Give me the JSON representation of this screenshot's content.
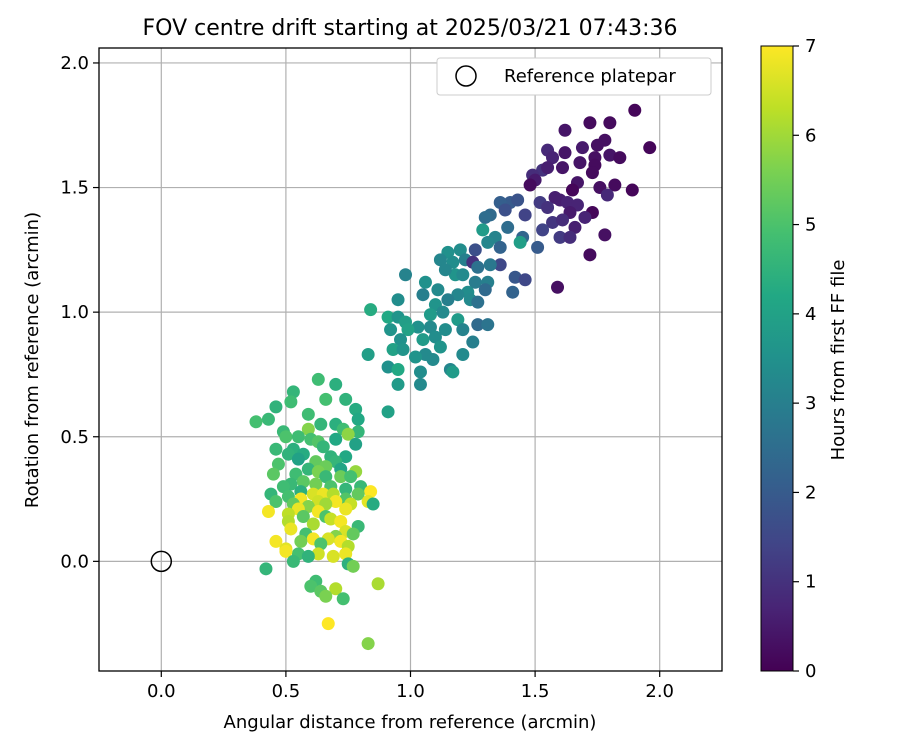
{
  "chart_data": {
    "type": "scatter",
    "title": "FOV centre drift starting at 2025/03/21 07:43:36",
    "xlabel": "Angular distance from reference (arcmin)",
    "ylabel": "Rotation from reference (arcmin)",
    "xlim": [
      -0.25,
      2.25
    ],
    "ylim": [
      -0.44,
      2.06
    ],
    "xticks": [
      0.0,
      0.5,
      1.0,
      1.5,
      2.0
    ],
    "xtick_labels": [
      "0.0",
      "0.5",
      "1.0",
      "1.5",
      "2.0"
    ],
    "yticks": [
      0.0,
      0.5,
      1.0,
      1.5,
      2.0
    ],
    "ytick_labels": [
      "0.0",
      "0.5",
      "1.0",
      "1.5",
      "2.0"
    ],
    "grid": true,
    "legend": {
      "position": "top-right",
      "entries": [
        "Reference platepar"
      ]
    },
    "reference_point": {
      "x": 0.0,
      "y": 0.0,
      "marker": "open-circle"
    },
    "colorbar": {
      "label": "Hours from first FF file",
      "range": [
        0,
        7
      ],
      "ticks": [
        0,
        1,
        2,
        3,
        4,
        5,
        6,
        7
      ],
      "colormap": "viridis"
    },
    "points": [
      {
        "x": 1.9,
        "y": 1.81,
        "c": 0.1
      },
      {
        "x": 1.72,
        "y": 1.76,
        "c": 0.2
      },
      {
        "x": 1.8,
        "y": 1.76,
        "c": 0.2
      },
      {
        "x": 1.62,
        "y": 1.73,
        "c": 0.4
      },
      {
        "x": 1.78,
        "y": 1.69,
        "c": 0.3
      },
      {
        "x": 1.75,
        "y": 1.67,
        "c": 0.3
      },
      {
        "x": 1.69,
        "y": 1.66,
        "c": 0.5
      },
      {
        "x": 1.96,
        "y": 1.66,
        "c": 0.1
      },
      {
        "x": 1.55,
        "y": 1.65,
        "c": 0.8
      },
      {
        "x": 1.62,
        "y": 1.64,
        "c": 0.4
      },
      {
        "x": 1.57,
        "y": 1.62,
        "c": 0.7
      },
      {
        "x": 1.74,
        "y": 1.62,
        "c": 0.3
      },
      {
        "x": 1.8,
        "y": 1.63,
        "c": 0.4
      },
      {
        "x": 1.84,
        "y": 1.62,
        "c": 0.2
      },
      {
        "x": 1.68,
        "y": 1.6,
        "c": 0.4
      },
      {
        "x": 1.74,
        "y": 1.59,
        "c": 0.2
      },
      {
        "x": 1.53,
        "y": 1.57,
        "c": 1.0
      },
      {
        "x": 1.55,
        "y": 1.58,
        "c": 0.6
      },
      {
        "x": 1.61,
        "y": 1.58,
        "c": 0.4
      },
      {
        "x": 1.49,
        "y": 1.55,
        "c": 0.9
      },
      {
        "x": 1.73,
        "y": 1.56,
        "c": 0.2
      },
      {
        "x": 1.5,
        "y": 1.53,
        "c": 0.5
      },
      {
        "x": 1.48,
        "y": 1.51,
        "c": 0.2
      },
      {
        "x": 1.67,
        "y": 1.52,
        "c": 0.4
      },
      {
        "x": 1.82,
        "y": 1.51,
        "c": 0.2
      },
      {
        "x": 1.76,
        "y": 1.5,
        "c": 0.3
      },
      {
        "x": 1.89,
        "y": 1.49,
        "c": 0.1
      },
      {
        "x": 1.65,
        "y": 1.49,
        "c": 0.1
      },
      {
        "x": 1.79,
        "y": 1.47,
        "c": 0.8
      },
      {
        "x": 1.58,
        "y": 1.46,
        "c": 0.6
      },
      {
        "x": 1.6,
        "y": 1.45,
        "c": 0.6
      },
      {
        "x": 1.63,
        "y": 1.44,
        "c": 0.7
      },
      {
        "x": 1.4,
        "y": 1.44,
        "c": 2.0
      },
      {
        "x": 1.36,
        "y": 1.44,
        "c": 2.1
      },
      {
        "x": 1.43,
        "y": 1.45,
        "c": 1.8
      },
      {
        "x": 1.52,
        "y": 1.44,
        "c": 1.2
      },
      {
        "x": 1.67,
        "y": 1.43,
        "c": 0.7
      },
      {
        "x": 1.55,
        "y": 1.42,
        "c": 1.0
      },
      {
        "x": 1.64,
        "y": 1.4,
        "c": 0.5
      },
      {
        "x": 1.73,
        "y": 1.4,
        "c": 0.1
      },
      {
        "x": 1.38,
        "y": 1.41,
        "c": 1.7
      },
      {
        "x": 1.32,
        "y": 1.39,
        "c": 2.4
      },
      {
        "x": 1.3,
        "y": 1.38,
        "c": 2.5
      },
      {
        "x": 1.46,
        "y": 1.39,
        "c": 1.4
      },
      {
        "x": 1.57,
        "y": 1.36,
        "c": 1.1
      },
      {
        "x": 1.61,
        "y": 1.37,
        "c": 0.9
      },
      {
        "x": 1.7,
        "y": 1.38,
        "c": 0.7
      },
      {
        "x": 1.39,
        "y": 1.34,
        "c": 2.5
      },
      {
        "x": 1.29,
        "y": 1.33,
        "c": 3.8
      },
      {
        "x": 1.53,
        "y": 1.33,
        "c": 1.4
      },
      {
        "x": 1.66,
        "y": 1.34,
        "c": 0.6
      },
      {
        "x": 1.45,
        "y": 1.3,
        "c": 2.3
      },
      {
        "x": 1.6,
        "y": 1.3,
        "c": 1.2
      },
      {
        "x": 1.64,
        "y": 1.3,
        "c": 0.9
      },
      {
        "x": 1.78,
        "y": 1.31,
        "c": 0.3
      },
      {
        "x": 1.34,
        "y": 1.3,
        "c": 3.1
      },
      {
        "x": 1.44,
        "y": 1.28,
        "c": 3.9
      },
      {
        "x": 1.31,
        "y": 1.28,
        "c": 3.2
      },
      {
        "x": 1.51,
        "y": 1.26,
        "c": 2.0
      },
      {
        "x": 1.26,
        "y": 1.25,
        "c": 1.7
      },
      {
        "x": 1.15,
        "y": 1.24,
        "c": 3.5
      },
      {
        "x": 1.2,
        "y": 1.25,
        "c": 3.4
      },
      {
        "x": 1.36,
        "y": 1.26,
        "c": 2.2
      },
      {
        "x": 1.72,
        "y": 1.23,
        "c": 0.2
      },
      {
        "x": 1.12,
        "y": 1.21,
        "c": 3.2
      },
      {
        "x": 1.17,
        "y": 1.2,
        "c": 3.4
      },
      {
        "x": 1.22,
        "y": 1.21,
        "c": 3.0
      },
      {
        "x": 1.25,
        "y": 1.2,
        "c": 1.0
      },
      {
        "x": 1.27,
        "y": 1.18,
        "c": 2.6
      },
      {
        "x": 1.36,
        "y": 1.19,
        "c": 1.5
      },
      {
        "x": 1.32,
        "y": 1.19,
        "c": 2.8
      },
      {
        "x": 0.98,
        "y": 1.15,
        "c": 3.1
      },
      {
        "x": 1.18,
        "y": 1.15,
        "c": 3.6
      },
      {
        "x": 1.14,
        "y": 1.17,
        "c": 3.2
      },
      {
        "x": 1.21,
        "y": 1.15,
        "c": 3.3
      },
      {
        "x": 1.42,
        "y": 1.14,
        "c": 1.9
      },
      {
        "x": 1.46,
        "y": 1.13,
        "c": 1.5
      },
      {
        "x": 1.06,
        "y": 1.12,
        "c": 3.5
      },
      {
        "x": 1.26,
        "y": 1.12,
        "c": 2.9
      },
      {
        "x": 1.31,
        "y": 1.12,
        "c": 3.0
      },
      {
        "x": 1.59,
        "y": 1.1,
        "c": 0.3
      },
      {
        "x": 1.11,
        "y": 1.09,
        "c": 3.3
      },
      {
        "x": 1.23,
        "y": 1.08,
        "c": 3.4
      },
      {
        "x": 1.3,
        "y": 1.09,
        "c": 2.4
      },
      {
        "x": 1.41,
        "y": 1.08,
        "c": 2.2
      },
      {
        "x": 1.05,
        "y": 1.07,
        "c": 3.0
      },
      {
        "x": 1.19,
        "y": 1.07,
        "c": 3.2
      },
      {
        "x": 0.95,
        "y": 1.05,
        "c": 3.4
      },
      {
        "x": 1.15,
        "y": 1.05,
        "c": 3.0
      },
      {
        "x": 1.24,
        "y": 1.05,
        "c": 3.3
      },
      {
        "x": 1.27,
        "y": 1.04,
        "c": 2.6
      },
      {
        "x": 1.1,
        "y": 1.03,
        "c": 3.6
      },
      {
        "x": 0.84,
        "y": 1.01,
        "c": 4.3
      },
      {
        "x": 0.91,
        "y": 0.98,
        "c": 4.2
      },
      {
        "x": 0.95,
        "y": 0.98,
        "c": 3.6
      },
      {
        "x": 1.08,
        "y": 0.99,
        "c": 3.8
      },
      {
        "x": 1.13,
        "y": 1.0,
        "c": 3.3
      },
      {
        "x": 1.19,
        "y": 0.97,
        "c": 3.8
      },
      {
        "x": 1.27,
        "y": 0.95,
        "c": 2.4
      },
      {
        "x": 1.31,
        "y": 0.95,
        "c": 2.7
      },
      {
        "x": 0.98,
        "y": 0.96,
        "c": 3.9
      },
      {
        "x": 1.03,
        "y": 0.94,
        "c": 3.5
      },
      {
        "x": 1.08,
        "y": 0.94,
        "c": 3.3
      },
      {
        "x": 1.21,
        "y": 0.93,
        "c": 3.1
      },
      {
        "x": 0.92,
        "y": 0.93,
        "c": 3.6
      },
      {
        "x": 0.99,
        "y": 0.93,
        "c": 4.0
      },
      {
        "x": 1.14,
        "y": 0.93,
        "c": 3.4
      },
      {
        "x": 1.1,
        "y": 0.9,
        "c": 3.4
      },
      {
        "x": 1.05,
        "y": 0.89,
        "c": 3.8
      },
      {
        "x": 0.96,
        "y": 0.89,
        "c": 3.5
      },
      {
        "x": 1.12,
        "y": 0.86,
        "c": 3.6
      },
      {
        "x": 1.25,
        "y": 0.88,
        "c": 3.0
      },
      {
        "x": 0.93,
        "y": 0.85,
        "c": 4.0
      },
      {
        "x": 0.97,
        "y": 0.85,
        "c": 3.6
      },
      {
        "x": 1.06,
        "y": 0.83,
        "c": 3.3
      },
      {
        "x": 0.83,
        "y": 0.83,
        "c": 3.9
      },
      {
        "x": 1.21,
        "y": 0.83,
        "c": 3.3
      },
      {
        "x": 1.02,
        "y": 0.82,
        "c": 3.6
      },
      {
        "x": 1.09,
        "y": 0.81,
        "c": 3.3
      },
      {
        "x": 0.91,
        "y": 0.78,
        "c": 3.5
      },
      {
        "x": 0.95,
        "y": 0.77,
        "c": 4.2
      },
      {
        "x": 1.04,
        "y": 0.76,
        "c": 3.4
      },
      {
        "x": 1.16,
        "y": 0.77,
        "c": 3.2
      },
      {
        "x": 1.17,
        "y": 0.76,
        "c": 3.8
      },
      {
        "x": 0.95,
        "y": 0.71,
        "c": 3.8
      },
      {
        "x": 1.04,
        "y": 0.71,
        "c": 3.3
      },
      {
        "x": 0.91,
        "y": 0.6,
        "c": 4.0
      },
      {
        "x": 0.63,
        "y": 0.73,
        "c": 4.8
      },
      {
        "x": 0.7,
        "y": 0.71,
        "c": 4.4
      },
      {
        "x": 0.53,
        "y": 0.68,
        "c": 4.6
      },
      {
        "x": 0.66,
        "y": 0.65,
        "c": 4.9
      },
      {
        "x": 0.74,
        "y": 0.65,
        "c": 4.5
      },
      {
        "x": 0.46,
        "y": 0.62,
        "c": 4.5
      },
      {
        "x": 0.52,
        "y": 0.64,
        "c": 4.8
      },
      {
        "x": 0.78,
        "y": 0.61,
        "c": 4.3
      },
      {
        "x": 0.59,
        "y": 0.59,
        "c": 4.8
      },
      {
        "x": 0.43,
        "y": 0.57,
        "c": 4.7
      },
      {
        "x": 0.38,
        "y": 0.56,
        "c": 4.9
      },
      {
        "x": 0.64,
        "y": 0.55,
        "c": 4.6
      },
      {
        "x": 0.7,
        "y": 0.55,
        "c": 4.4
      },
      {
        "x": 0.79,
        "y": 0.57,
        "c": 4.2
      },
      {
        "x": 0.73,
        "y": 0.53,
        "c": 4.8
      },
      {
        "x": 0.79,
        "y": 0.52,
        "c": 4.6
      },
      {
        "x": 0.59,
        "y": 0.53,
        "c": 5.7
      },
      {
        "x": 0.49,
        "y": 0.52,
        "c": 4.7
      },
      {
        "x": 0.75,
        "y": 0.51,
        "c": 5.8
      },
      {
        "x": 0.5,
        "y": 0.5,
        "c": 5.0
      },
      {
        "x": 0.55,
        "y": 0.5,
        "c": 4.8
      },
      {
        "x": 0.6,
        "y": 0.49,
        "c": 4.9
      },
      {
        "x": 0.63,
        "y": 0.48,
        "c": 5.1
      },
      {
        "x": 0.7,
        "y": 0.49,
        "c": 4.2
      },
      {
        "x": 0.78,
        "y": 0.47,
        "c": 4.0
      },
      {
        "x": 0.46,
        "y": 0.45,
        "c": 4.7
      },
      {
        "x": 0.53,
        "y": 0.45,
        "c": 4.4
      },
      {
        "x": 0.65,
        "y": 0.46,
        "c": 4.6
      },
      {
        "x": 0.51,
        "y": 0.43,
        "c": 4.5
      },
      {
        "x": 0.57,
        "y": 0.43,
        "c": 4.3
      },
      {
        "x": 0.68,
        "y": 0.42,
        "c": 4.5
      },
      {
        "x": 0.74,
        "y": 0.42,
        "c": 4.2
      },
      {
        "x": 0.55,
        "y": 0.41,
        "c": 4.0
      },
      {
        "x": 0.62,
        "y": 0.4,
        "c": 5.3
      },
      {
        "x": 0.7,
        "y": 0.4,
        "c": 4.6
      },
      {
        "x": 0.47,
        "y": 0.39,
        "c": 5.0
      },
      {
        "x": 0.66,
        "y": 0.38,
        "c": 5.4
      },
      {
        "x": 0.59,
        "y": 0.37,
        "c": 4.6
      },
      {
        "x": 0.72,
        "y": 0.37,
        "c": 4.1
      },
      {
        "x": 0.63,
        "y": 0.36,
        "c": 5.6
      },
      {
        "x": 0.78,
        "y": 0.36,
        "c": 5.9
      },
      {
        "x": 0.45,
        "y": 0.35,
        "c": 5.2
      },
      {
        "x": 0.54,
        "y": 0.35,
        "c": 4.8
      },
      {
        "x": 0.66,
        "y": 0.34,
        "c": 4.7
      },
      {
        "x": 0.72,
        "y": 0.34,
        "c": 5.4
      },
      {
        "x": 0.76,
        "y": 0.34,
        "c": 4.9
      },
      {
        "x": 0.57,
        "y": 0.32,
        "c": 5.2
      },
      {
        "x": 0.62,
        "y": 0.31,
        "c": 5.5
      },
      {
        "x": 0.52,
        "y": 0.31,
        "c": 4.7
      },
      {
        "x": 0.49,
        "y": 0.3,
        "c": 4.8
      },
      {
        "x": 0.8,
        "y": 0.3,
        "c": 4.7
      },
      {
        "x": 0.68,
        "y": 0.3,
        "c": 5.0
      },
      {
        "x": 0.74,
        "y": 0.29,
        "c": 4.6
      },
      {
        "x": 0.56,
        "y": 0.28,
        "c": 4.4
      },
      {
        "x": 0.84,
        "y": 0.28,
        "c": 7.0
      },
      {
        "x": 0.44,
        "y": 0.27,
        "c": 4.6
      },
      {
        "x": 0.61,
        "y": 0.27,
        "c": 6.6
      },
      {
        "x": 0.65,
        "y": 0.27,
        "c": 6.8
      },
      {
        "x": 0.69,
        "y": 0.27,
        "c": 6.2
      },
      {
        "x": 0.79,
        "y": 0.27,
        "c": 5.3
      },
      {
        "x": 0.51,
        "y": 0.26,
        "c": 4.9
      },
      {
        "x": 0.56,
        "y": 0.25,
        "c": 6.9
      },
      {
        "x": 0.74,
        "y": 0.25,
        "c": 5.1
      },
      {
        "x": 0.83,
        "y": 0.24,
        "c": 6.7
      },
      {
        "x": 0.46,
        "y": 0.24,
        "c": 5.0
      },
      {
        "x": 0.53,
        "y": 0.23,
        "c": 5.3
      },
      {
        "x": 0.63,
        "y": 0.24,
        "c": 6.5
      },
      {
        "x": 0.7,
        "y": 0.24,
        "c": 6.9
      },
      {
        "x": 0.59,
        "y": 0.22,
        "c": 5.7
      },
      {
        "x": 0.66,
        "y": 0.23,
        "c": 6.0
      },
      {
        "x": 0.76,
        "y": 0.23,
        "c": 6.4
      },
      {
        "x": 0.85,
        "y": 0.23,
        "c": 4.3
      },
      {
        "x": 0.55,
        "y": 0.21,
        "c": 6.8
      },
      {
        "x": 0.63,
        "y": 0.2,
        "c": 6.9
      },
      {
        "x": 0.74,
        "y": 0.21,
        "c": 6.8
      },
      {
        "x": 0.43,
        "y": 0.2,
        "c": 6.9
      },
      {
        "x": 0.51,
        "y": 0.19,
        "c": 6.3
      },
      {
        "x": 0.57,
        "y": 0.18,
        "c": 5.2
      },
      {
        "x": 0.66,
        "y": 0.18,
        "c": 5.0
      },
      {
        "x": 0.68,
        "y": 0.17,
        "c": 6.4
      },
      {
        "x": 0.72,
        "y": 0.16,
        "c": 6.9
      },
      {
        "x": 0.51,
        "y": 0.16,
        "c": 6.2
      },
      {
        "x": 0.61,
        "y": 0.15,
        "c": 6.1
      },
      {
        "x": 0.79,
        "y": 0.14,
        "c": 4.7
      },
      {
        "x": 0.52,
        "y": 0.13,
        "c": 6.8
      },
      {
        "x": 0.74,
        "y": 0.12,
        "c": 6.6
      },
      {
        "x": 0.58,
        "y": 0.11,
        "c": 4.9
      },
      {
        "x": 0.7,
        "y": 0.1,
        "c": 5.7
      },
      {
        "x": 0.77,
        "y": 0.11,
        "c": 5.3
      },
      {
        "x": 0.61,
        "y": 0.09,
        "c": 6.9
      },
      {
        "x": 0.67,
        "y": 0.09,
        "c": 6.6
      },
      {
        "x": 0.72,
        "y": 0.08,
        "c": 6.9
      },
      {
        "x": 0.46,
        "y": 0.08,
        "c": 6.9
      },
      {
        "x": 0.56,
        "y": 0.08,
        "c": 5.5
      },
      {
        "x": 0.64,
        "y": 0.07,
        "c": 5.0
      },
      {
        "x": 0.75,
        "y": 0.06,
        "c": 6.2
      },
      {
        "x": 0.5,
        "y": 0.05,
        "c": 6.7
      },
      {
        "x": 0.55,
        "y": 0.03,
        "c": 4.9
      },
      {
        "x": 0.63,
        "y": 0.03,
        "c": 6.5
      },
      {
        "x": 0.69,
        "y": 0.02,
        "c": 6.6
      },
      {
        "x": 0.74,
        "y": 0.03,
        "c": 6.8
      },
      {
        "x": 0.5,
        "y": 0.04,
        "c": 6.9
      },
      {
        "x": 0.59,
        "y": 0.02,
        "c": 4.5
      },
      {
        "x": 0.53,
        "y": 0.0,
        "c": 4.7
      },
      {
        "x": 0.75,
        "y": -0.01,
        "c": 4.4
      },
      {
        "x": 0.42,
        "y": -0.03,
        "c": 4.6
      },
      {
        "x": 0.77,
        "y": -0.02,
        "c": 5.5
      },
      {
        "x": 0.62,
        "y": -0.08,
        "c": 4.8
      },
      {
        "x": 0.87,
        "y": -0.09,
        "c": 6.1
      },
      {
        "x": 0.6,
        "y": -0.1,
        "c": 5.0
      },
      {
        "x": 0.64,
        "y": -0.12,
        "c": 5.2
      },
      {
        "x": 0.7,
        "y": -0.11,
        "c": 6.2
      },
      {
        "x": 0.66,
        "y": -0.14,
        "c": 5.6
      },
      {
        "x": 0.73,
        "y": -0.15,
        "c": 4.9
      },
      {
        "x": 0.67,
        "y": -0.25,
        "c": 7.0
      },
      {
        "x": 0.83,
        "y": -0.33,
        "c": 5.7
      }
    ]
  }
}
